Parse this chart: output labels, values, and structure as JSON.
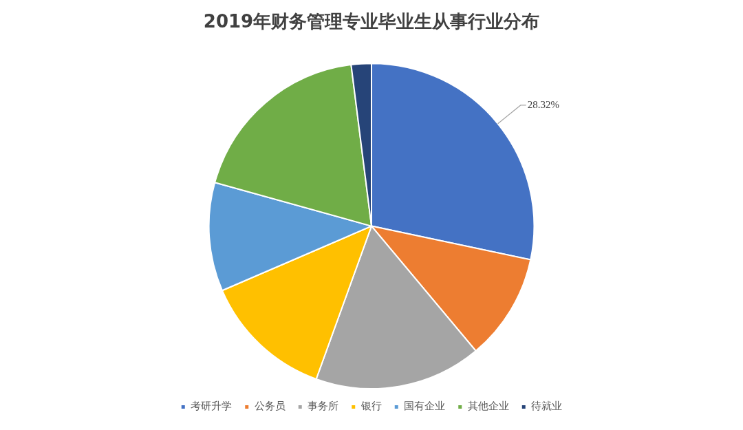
{
  "chart_data": {
    "type": "pie",
    "title": "2019年财务管理专业毕业生从事行业分布",
    "categories": [
      "考研升学",
      "公务员",
      "事务所",
      "银行",
      "国有企业",
      "其他企业",
      "待就业"
    ],
    "values": [
      28.32,
      10.6,
      16.6,
      13.0,
      10.8,
      18.68,
      2.0
    ],
    "colors": [
      "#4472c4",
      "#ed7d31",
      "#a5a5a5",
      "#ffc000",
      "#5b9bd5",
      "#70ad47",
      "#264478"
    ],
    "value_labels": [
      "28.32%",
      null,
      null,
      null,
      null,
      null,
      null
    ],
    "legend": "bottom"
  }
}
